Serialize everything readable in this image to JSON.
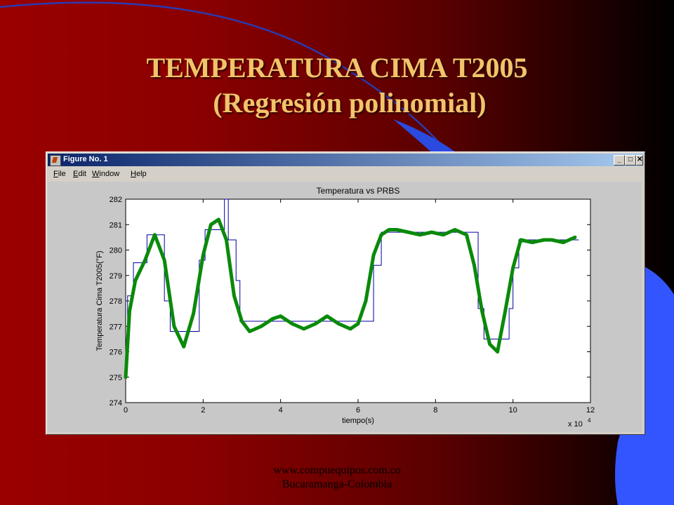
{
  "slide": {
    "title_line1": "TEMPERATURA CIMA T2005",
    "title_line2": "(Regresión polinomial)",
    "footer_line1": "www.compuequipos.com.co",
    "footer_line2": "Bucaramanga-Colombia"
  },
  "window": {
    "title": "Figure No. 1",
    "menu": [
      "File",
      "Edit",
      "Window",
      "Help"
    ],
    "controls": [
      "minimize",
      "maximize",
      "close"
    ]
  },
  "chart_data": {
    "type": "line",
    "title": "Temperatura vs PRBS",
    "xlabel": "tiempo(s)",
    "ylabel": "Temperatura Cima T2005(°F)",
    "x_multiplier": "x 10",
    "x_multiplier_exp": "4",
    "xlim": [
      0,
      12
    ],
    "ylim": [
      274,
      282
    ],
    "xticks": [
      0,
      2,
      4,
      6,
      8,
      10,
      12
    ],
    "yticks": [
      274,
      275,
      276,
      277,
      278,
      279,
      280,
      281,
      282
    ],
    "series": [
      {
        "color": "#0000a0",
        "style": "step",
        "x": [
          0,
          0.05,
          0.2,
          0.55,
          1.0,
          1.15,
          1.9,
          2.05,
          2.55,
          2.65,
          2.85,
          2.95,
          6.4,
          6.6,
          9.1,
          9.25,
          9.9,
          10.0,
          10.15,
          11.7
        ],
        "values": [
          276.5,
          278.2,
          279.5,
          280.6,
          278.0,
          276.8,
          279.6,
          280.8,
          282.0,
          280.4,
          278.8,
          277.2,
          279.4,
          280.7,
          277.7,
          276.5,
          277.7,
          279.3,
          280.4,
          280.4
        ]
      },
      {
        "color": "#0a8a0a",
        "style": "markers",
        "x": [
          0,
          0.1,
          0.25,
          0.5,
          0.75,
          1.0,
          1.25,
          1.5,
          1.75,
          2.0,
          2.2,
          2.4,
          2.6,
          2.8,
          3.0,
          3.2,
          3.5,
          3.8,
          4.0,
          4.3,
          4.6,
          4.9,
          5.2,
          5.5,
          5.8,
          6.0,
          6.2,
          6.4,
          6.6,
          6.8,
          7.0,
          7.3,
          7.6,
          7.9,
          8.2,
          8.5,
          8.8,
          9.0,
          9.2,
          9.4,
          9.6,
          9.8,
          10.0,
          10.2,
          10.5,
          10.8,
          11.0,
          11.3,
          11.6
        ],
        "values": [
          275.0,
          277.6,
          278.8,
          279.6,
          280.6,
          279.6,
          277.0,
          276.2,
          277.5,
          279.8,
          281.0,
          281.2,
          280.4,
          278.2,
          277.2,
          276.8,
          277.0,
          277.3,
          277.4,
          277.1,
          276.9,
          277.1,
          277.4,
          277.1,
          276.9,
          277.1,
          278.0,
          279.8,
          280.6,
          280.8,
          280.8,
          280.7,
          280.6,
          280.7,
          280.6,
          280.8,
          280.6,
          279.4,
          277.6,
          276.3,
          276.0,
          277.6,
          279.3,
          280.4,
          280.3,
          280.4,
          280.4,
          280.3,
          280.5
        ]
      }
    ]
  }
}
